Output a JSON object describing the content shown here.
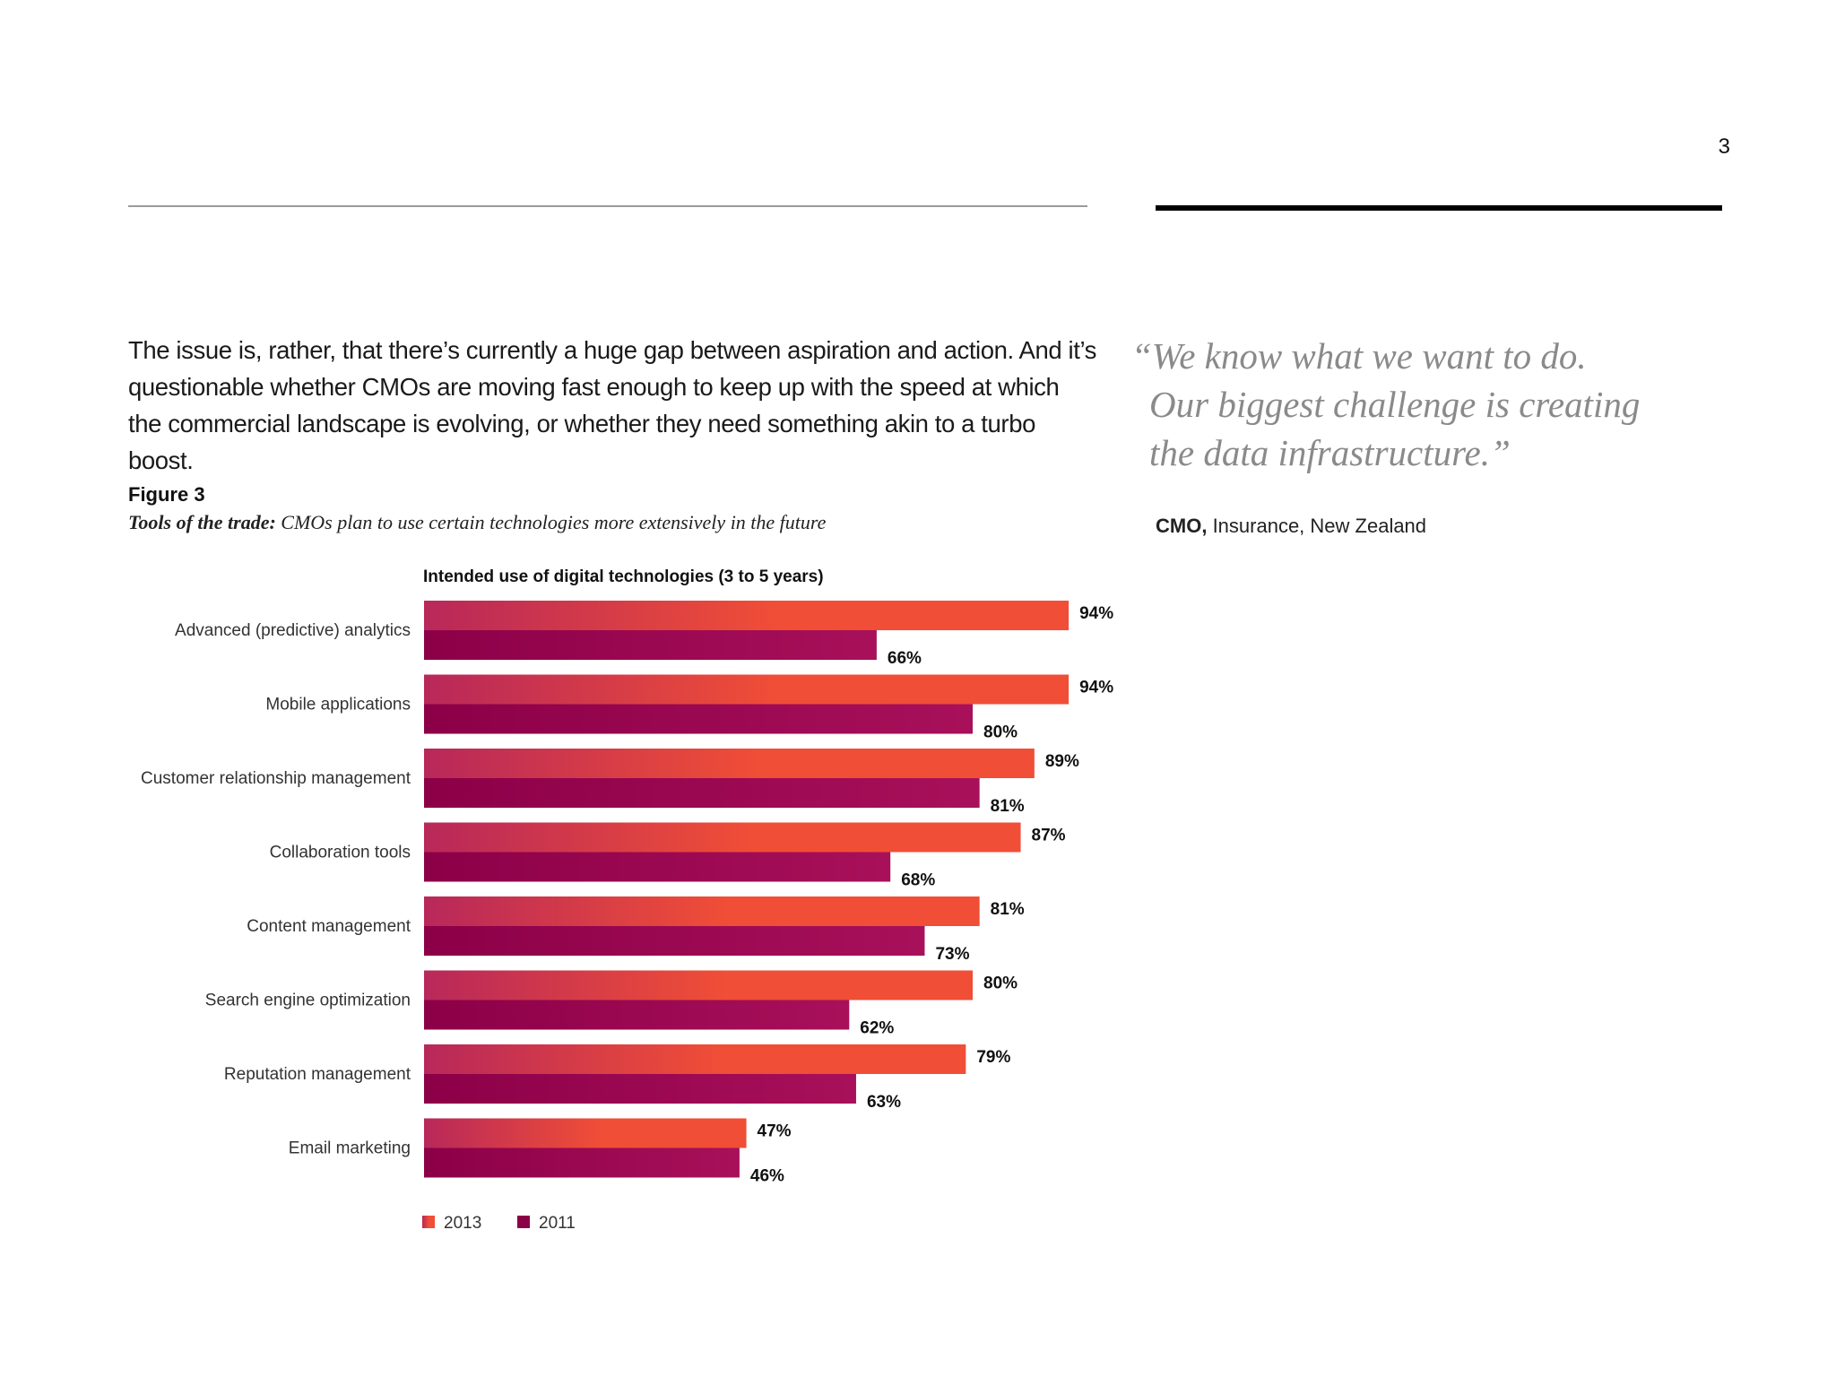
{
  "page_number": "3",
  "body_text": "The issue is, rather, that there’s currently a huge gap between aspiration and action. And it’s questionable whether CMOs are moving fast enough to keep up with the speed at which the commercial landscape is evolving, or whether they need something akin to a turbo boost.",
  "figure": {
    "label": "Figure 3",
    "caption_lead": "Tools of the trade:",
    "caption_rest": " CMOs plan to use certain technologies more extensively in the future"
  },
  "quote": {
    "lines": [
      "“We know what we want to do.",
      "Our biggest challenge is creating",
      "the data infrastructure.”"
    ],
    "attribution_role": "CMO,",
    "attribution_rest": " Insurance, New Zealand"
  },
  "colors": {
    "series_2013_start": "#b8285a",
    "series_2013_end": "#f04e36",
    "series_2011_start": "#8c0048",
    "series_2011_end": "#a8105a"
  },
  "chart_data": {
    "type": "bar",
    "orientation": "horizontal",
    "title": "Intended use of digital technologies (3 to 5 years)",
    "categories": [
      "Advanced (predictive) analytics",
      "Mobile applications",
      "Customer relationship management",
      "Collaboration tools",
      "Content management",
      "Search engine optimization",
      "Reputation management",
      "Email marketing"
    ],
    "series": [
      {
        "name": "2013",
        "values": [
          94,
          94,
          89,
          87,
          81,
          80,
          79,
          47
        ],
        "labels": [
          "94%",
          "94%",
          "89%",
          "87%",
          "81%",
          "80%",
          "79%",
          "47%"
        ]
      },
      {
        "name": "2011",
        "values": [
          66,
          80,
          81,
          68,
          73,
          62,
          63,
          46
        ],
        "labels": [
          "66%",
          "80%",
          "81%",
          "68%",
          "73%",
          "62%",
          "63%",
          "46%"
        ]
      }
    ],
    "xlim": [
      0,
      100
    ],
    "unit": "%",
    "grid": false,
    "legend_position": "bottom-left"
  }
}
